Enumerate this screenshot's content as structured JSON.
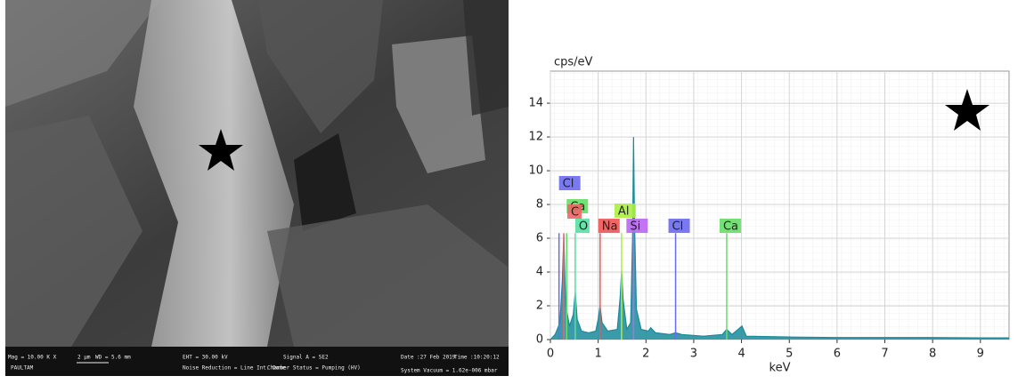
{
  "sem_info": {
    "items": [
      "Mag = 10.00 K X",
      "PAULTAM",
      "2 µm",
      "WD = 5.6 mm",
      "EHT = 30.00 kV",
      "Noise Reduction = Line Int. Done",
      "Chamber Status = Pumping (HV)",
      "Signal A = SE2",
      "Date :27 Feb 2019",
      "Time :10:20:12",
      "System Vacuum = 1.62e-006 mbar"
    ]
  },
  "chart_data": {
    "type": "area",
    "y_label": "cps/eV",
    "x_label": "keV",
    "x": [
      0,
      0.1,
      0.2,
      0.25,
      0.28,
      0.32,
      0.4,
      0.48,
      0.52,
      0.56,
      0.65,
      0.8,
      0.95,
      1.0,
      1.04,
      1.08,
      1.2,
      1.4,
      1.46,
      1.49,
      1.52,
      1.6,
      1.68,
      1.72,
      1.74,
      1.76,
      1.8,
      1.9,
      2.05,
      2.1,
      2.2,
      2.5,
      2.62,
      2.75,
      3.2,
      3.6,
      3.69,
      3.8,
      4.01,
      4.1,
      5,
      6,
      7,
      8,
      9,
      9.6
    ],
    "values": [
      0,
      0.3,
      1.0,
      3.5,
      6.2,
      2.0,
      0.8,
      1.5,
      2.8,
      1.2,
      0.5,
      0.4,
      0.5,
      1.2,
      2.0,
      1.0,
      0.5,
      0.6,
      2.5,
      4.1,
      2.4,
      0.6,
      1.0,
      6,
      12,
      7,
      1.8,
      0.6,
      0.5,
      0.7,
      0.4,
      0.3,
      0.4,
      0.3,
      0.2,
      0.3,
      0.6,
      0.3,
      0.8,
      0.2,
      0.15,
      0.12,
      0.12,
      0.12,
      0.1,
      0.1
    ],
    "color": "#1a8a9a",
    "xlim": [
      0,
      9.6
    ],
    "ylim": [
      0,
      15.9
    ],
    "xticks": [
      0,
      1,
      2,
      3,
      4,
      5,
      6,
      7,
      8,
      9
    ],
    "yticks": [
      0,
      2,
      4,
      6,
      8,
      10,
      12,
      14
    ],
    "grid": true,
    "elements": [
      {
        "label": "Cl",
        "energy": 0.18,
        "color": "#6a6af0"
      },
      {
        "label": "Ca",
        "energy": 0.34,
        "color": "#66dd66"
      },
      {
        "label": "C",
        "energy": 0.28,
        "color": "#ee6666"
      },
      {
        "label": "O",
        "energy": 0.52,
        "color": "#55e0a0"
      },
      {
        "label": "Na",
        "energy": 1.04,
        "color": "#ee5555"
      },
      {
        "label": "Al",
        "energy": 1.49,
        "color": "#aaee44"
      },
      {
        "label": "Si",
        "energy": 1.74,
        "color": "#bb66ee"
      },
      {
        "label": "Cl",
        "energy": 2.62,
        "color": "#6a6af0"
      },
      {
        "label": "Ca",
        "energy": 3.69,
        "color": "#66dd66"
      }
    ]
  }
}
